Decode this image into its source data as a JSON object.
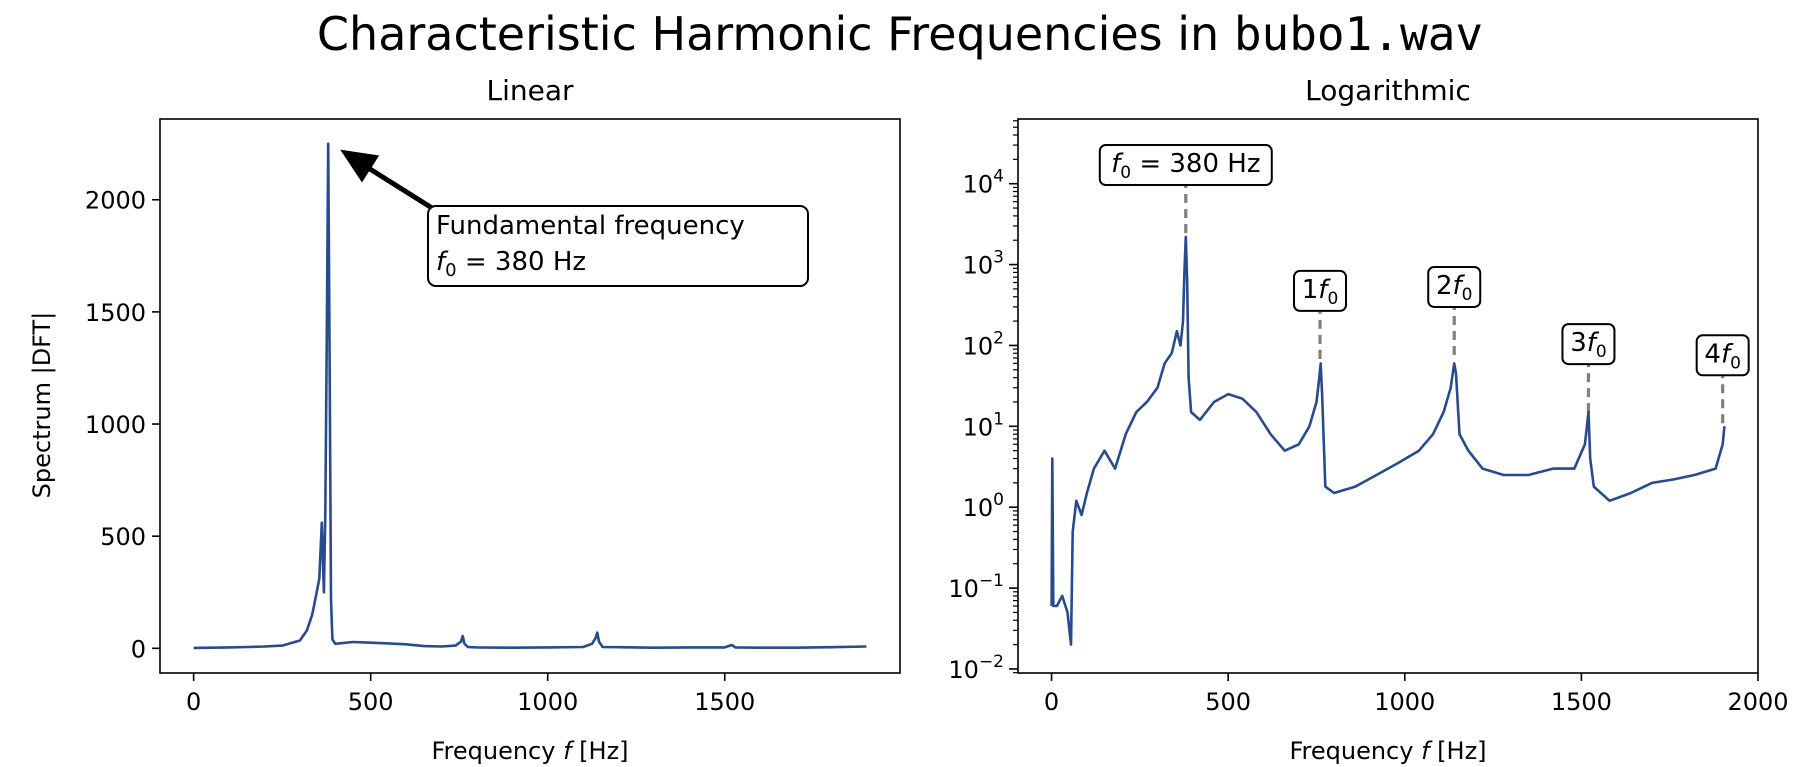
{
  "figure": {
    "title_prefix": "Characteristic Harmonic Frequencies in ",
    "title_file": "bubo1.wav"
  },
  "chart_data": [
    {
      "type": "line",
      "title": "Linear",
      "xlabel": "Frequency f [Hz]",
      "ylabel": "Spectrum |DFT|",
      "xlim": [
        -95,
        1995
      ],
      "ylim": [
        -110,
        2360
      ],
      "xticks": [
        0,
        500,
        1000,
        1500
      ],
      "yticks": [
        0,
        500,
        1000,
        1500,
        2000
      ],
      "y_scale": "linear",
      "color": "#274b8e",
      "series": [
        {
          "x": [
            0,
            100,
            150,
            200,
            250,
            300,
            320,
            335,
            345,
            355,
            362,
            368,
            372,
            376,
            380,
            384,
            388,
            392,
            400,
            450,
            500,
            550,
            600,
            650,
            700,
            740,
            755,
            760,
            765,
            775,
            800,
            900,
            1000,
            1100,
            1125,
            1135,
            1140,
            1145,
            1155,
            1200,
            1300,
            1400,
            1500,
            1520,
            1530,
            1600,
            1700,
            1800,
            1900
          ],
          "y": [
            2,
            4,
            6,
            8,
            12,
            35,
            80,
            150,
            230,
            310,
            560,
            250,
            600,
            1400,
            2250,
            1300,
            220,
            40,
            20,
            28,
            25,
            22,
            18,
            10,
            8,
            12,
            30,
            55,
            20,
            6,
            4,
            3,
            4,
            6,
            20,
            45,
            70,
            30,
            6,
            5,
            3,
            4,
            4,
            15,
            4,
            3,
            3,
            5,
            8
          ]
        }
      ],
      "annotation": {
        "line1": "Fundamental frequency",
        "line2_prefix": "f",
        "line2_sub": "0",
        "line2_suffix": " = 380 Hz",
        "target_x": 380,
        "target_y": 2250
      }
    },
    {
      "type": "line",
      "title": "Logarithmic",
      "xlabel": "Frequency f [Hz]",
      "xlim": [
        -95,
        2000
      ],
      "ylim_exp": [
        -2.05,
        4.8
      ],
      "xticks": [
        0,
        500,
        1000,
        1500,
        2000
      ],
      "yticks_exp": [
        -2,
        -1,
        0,
        1,
        2,
        3,
        4
      ],
      "y_scale": "log",
      "color": "#274b8e",
      "series": [
        {
          "x": [
            0,
            2,
            5,
            15,
            30,
            45,
            55,
            60,
            70,
            85,
            100,
            120,
            150,
            180,
            210,
            240,
            270,
            300,
            320,
            340,
            355,
            365,
            372,
            376,
            380,
            384,
            388,
            395,
            420,
            460,
            500,
            540,
            580,
            620,
            660,
            700,
            730,
            750,
            758,
            762,
            766,
            775,
            800,
            860,
            920,
            980,
            1040,
            1080,
            1110,
            1130,
            1140,
            1145,
            1155,
            1180,
            1220,
            1280,
            1350,
            1420,
            1480,
            1510,
            1520,
            1525,
            1535,
            1580,
            1640,
            1700,
            1760,
            1820,
            1880,
            1900,
            1905
          ],
          "y": [
            0.06,
            4,
            0.06,
            0.06,
            0.08,
            0.05,
            0.02,
            0.5,
            1.2,
            0.8,
            1.5,
            3,
            5,
            3,
            8,
            15,
            20,
            30,
            60,
            80,
            150,
            100,
            200,
            800,
            2200,
            600,
            40,
            15,
            12,
            20,
            25,
            22,
            15,
            8,
            5,
            6,
            10,
            20,
            40,
            60,
            25,
            1.8,
            1.5,
            1.8,
            2.5,
            3.5,
            5,
            8,
            15,
            30,
            60,
            45,
            8,
            5,
            3,
            2.5,
            2.5,
            3,
            3,
            6,
            15,
            4,
            1.8,
            1.2,
            1.5,
            2,
            2.2,
            2.5,
            3,
            6,
            10
          ]
        }
      ],
      "markers": [
        {
          "x": 380,
          "y": 2200,
          "box_y": 18000,
          "prefix": "",
          "sub": "0",
          "suffix": " = 380 Hz",
          "lead": "f"
        },
        {
          "x": 760,
          "y": 60,
          "box_y": 500,
          "prefix": "1",
          "lead": "f",
          "sub": "0",
          "suffix": ""
        },
        {
          "x": 1140,
          "y": 70,
          "box_y": 560,
          "prefix": "2",
          "lead": "f",
          "sub": "0",
          "suffix": ""
        },
        {
          "x": 1520,
          "y": 15,
          "box_y": 110,
          "prefix": "3",
          "lead": "f",
          "sub": "0",
          "suffix": ""
        },
        {
          "x": 1900,
          "y": 10,
          "box_y": 80,
          "prefix": "4",
          "lead": "f",
          "sub": "0",
          "suffix": ""
        }
      ]
    }
  ]
}
